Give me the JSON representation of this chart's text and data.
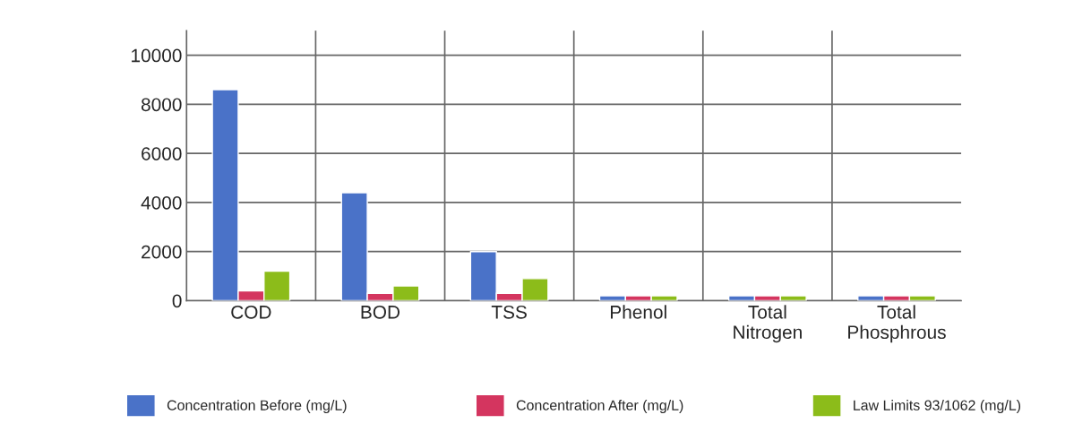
{
  "chart_data": {
    "type": "bar",
    "categories": [
      "COD",
      "BOD",
      "TSS",
      "Phenol",
      "Total\nNitrogen",
      "Total\nPhosphrous"
    ],
    "series": [
      {
        "name": "Concentration Before (mg/L)",
        "color": "#4a72c8",
        "values": [
          8600,
          4400,
          2000,
          200,
          200,
          200
        ]
      },
      {
        "name": "Concentration After (mg/L)",
        "color": "#d4355f",
        "values": [
          400,
          300,
          300,
          200,
          200,
          200
        ]
      },
      {
        "name": "Law Limits 93/1062 (mg/L)",
        "color": "#8cbc1a",
        "values": [
          1200,
          600,
          900,
          200,
          200,
          200
        ]
      }
    ],
    "ylim": [
      0,
      11000
    ],
    "yticks": [
      0,
      2000,
      4000,
      6000,
      8000,
      10000
    ],
    "grid": true,
    "legend": "bottom"
  }
}
